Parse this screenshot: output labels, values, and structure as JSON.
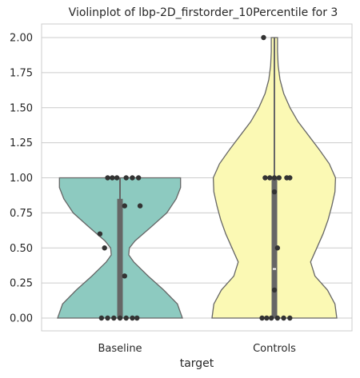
{
  "chart_data": {
    "type": "violin",
    "title": "Violinplot of lbp-2D_firstorder_10Percentile for 3",
    "xlabel": "target",
    "ylabel": "",
    "ylim": [
      -0.1,
      2.1
    ],
    "yticks": [
      "0.00",
      "0.25",
      "0.50",
      "0.75",
      "1.00",
      "1.25",
      "1.50",
      "1.75",
      "2.00"
    ],
    "grid": true,
    "legend": "none",
    "categories": [
      "Baseline",
      "Controls"
    ],
    "colors": {
      "Baseline": "#8dcac0",
      "Controls": "#fbf9b4"
    },
    "violins": [
      {
        "category": "Baseline",
        "quartiles": {
          "q1": 0.0,
          "median": 0.0,
          "q3": 0.85
        },
        "points": [
          {
            "x": -0.08,
            "y": 1.0
          },
          {
            "x": -0.05,
            "y": 1.0
          },
          {
            "x": -0.02,
            "y": 1.0
          },
          {
            "x": 0.04,
            "y": 1.0
          },
          {
            "x": 0.08,
            "y": 1.0
          },
          {
            "x": 0.12,
            "y": 1.0
          },
          {
            "x": 0.03,
            "y": 0.8
          },
          {
            "x": 0.13,
            "y": 0.8
          },
          {
            "x": -0.13,
            "y": 0.6
          },
          {
            "x": -0.1,
            "y": 0.5
          },
          {
            "x": 0.03,
            "y": 0.3
          },
          {
            "x": -0.12,
            "y": 0.0
          },
          {
            "x": -0.08,
            "y": 0.0
          },
          {
            "x": -0.04,
            "y": 0.0
          },
          {
            "x": 0.0,
            "y": 0.0
          },
          {
            "x": 0.04,
            "y": 0.0
          },
          {
            "x": 0.08,
            "y": 0.0
          },
          {
            "x": 0.11,
            "y": 0.0
          }
        ]
      },
      {
        "category": "Controls",
        "quartiles": {
          "q1": 0.0,
          "median": 0.35,
          "q3": 1.0
        },
        "points": [
          {
            "x": -0.07,
            "y": 2.0
          },
          {
            "x": -0.06,
            "y": 1.0
          },
          {
            "x": -0.03,
            "y": 1.0
          },
          {
            "x": 0.0,
            "y": 1.0
          },
          {
            "x": 0.03,
            "y": 1.0
          },
          {
            "x": 0.08,
            "y": 1.0
          },
          {
            "x": 0.1,
            "y": 1.0
          },
          {
            "x": 0.0,
            "y": 0.9
          },
          {
            "x": 0.02,
            "y": 0.5
          },
          {
            "x": 0.0,
            "y": 0.2
          },
          {
            "x": -0.08,
            "y": 0.0
          },
          {
            "x": -0.05,
            "y": 0.0
          },
          {
            "x": -0.02,
            "y": 0.0
          },
          {
            "x": 0.02,
            "y": 0.0
          },
          {
            "x": 0.06,
            "y": 0.0
          },
          {
            "x": 0.1,
            "y": 0.0
          }
        ]
      }
    ]
  }
}
